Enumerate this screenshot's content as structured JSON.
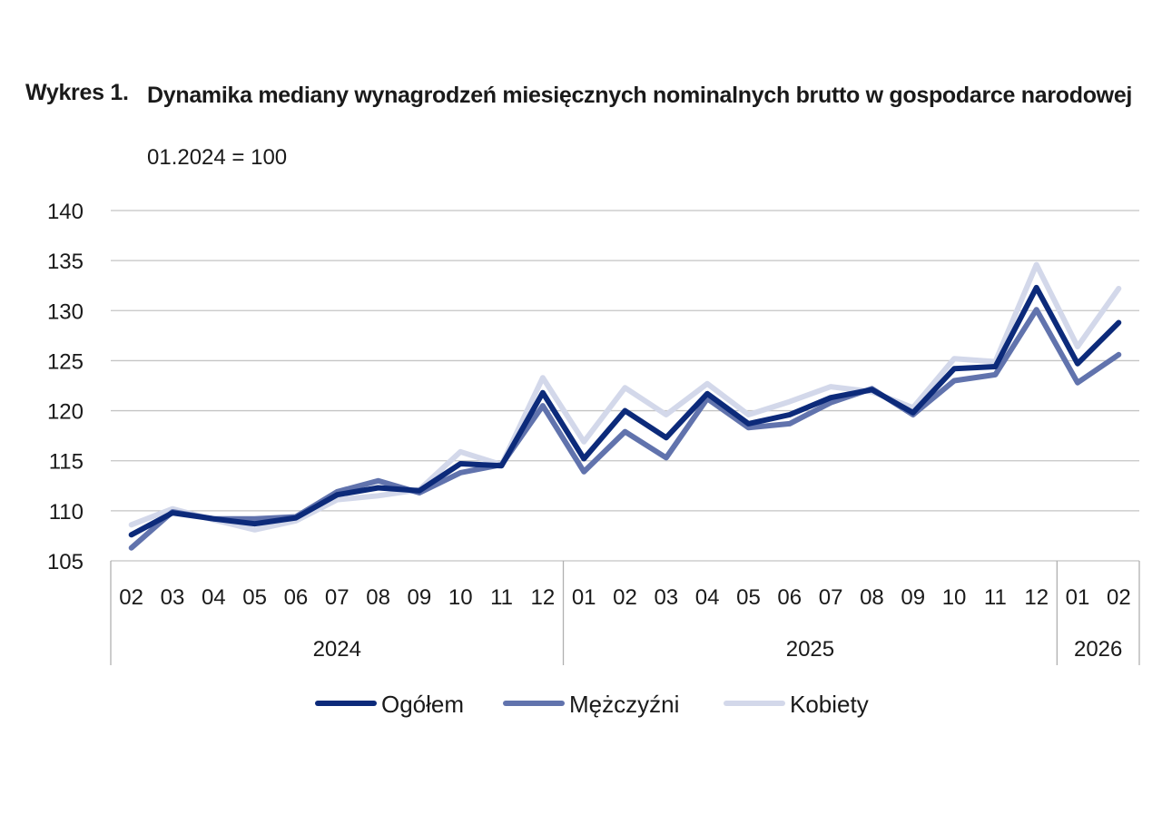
{
  "chart_data": {
    "type": "line",
    "title_prefix": "Wykres 1.",
    "title": "Dynamika mediany wynagrodzeń miesięcznych nominalnych brutto w gospodarce narodowej",
    "subtitle": "01.2024 = 100",
    "categories": [
      "02",
      "03",
      "04",
      "05",
      "06",
      "07",
      "08",
      "09",
      "10",
      "11",
      "12",
      "01",
      "02",
      "03",
      "04",
      "05",
      "06",
      "07",
      "08",
      "09",
      "10",
      "11",
      "12",
      "01",
      "02"
    ],
    "year_groups": [
      {
        "label": "2024",
        "start": 0,
        "end": 10
      },
      {
        "label": "2025",
        "start": 11,
        "end": 22
      },
      {
        "label": "2026",
        "start": 23,
        "end": 24
      }
    ],
    "ylim": [
      105,
      140
    ],
    "yticks": [
      105,
      110,
      115,
      120,
      125,
      130,
      135,
      140
    ],
    "grid": true,
    "legend_position": "bottom",
    "series": [
      {
        "name": "Ogółem",
        "color": "#0c2a7a",
        "values": [
          107.6,
          109.8,
          109.2,
          108.7,
          109.3,
          111.6,
          112.3,
          112.0,
          114.7,
          114.5,
          121.8,
          115.2,
          120.0,
          117.3,
          121.7,
          118.7,
          119.6,
          121.3,
          122.1,
          119.8,
          124.2,
          124.4,
          132.3,
          124.7,
          128.8
        ]
      },
      {
        "name": "Mężczyźni",
        "color": "#6173ad",
        "values": [
          106.3,
          109.9,
          109.2,
          109.2,
          109.4,
          111.9,
          113.0,
          111.8,
          113.8,
          114.6,
          120.5,
          113.9,
          117.9,
          115.3,
          121.2,
          118.3,
          118.7,
          120.8,
          122.2,
          119.6,
          123.0,
          123.6,
          130.1,
          122.8,
          125.6
        ]
      },
      {
        "name": "Kobiety",
        "color": "#d3d8ea",
        "values": [
          108.6,
          110.2,
          109.1,
          108.1,
          109.0,
          111.1,
          111.5,
          112.1,
          115.9,
          114.6,
          123.3,
          116.9,
          122.3,
          119.6,
          122.7,
          119.6,
          120.9,
          122.4,
          121.9,
          120.3,
          125.2,
          124.9,
          134.6,
          126.4,
          132.2
        ]
      }
    ]
  }
}
